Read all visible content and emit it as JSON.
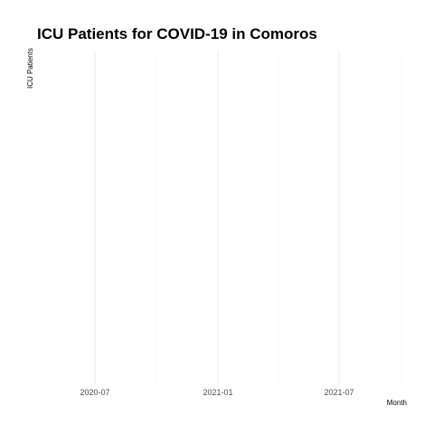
{
  "chart_data": {
    "type": "line",
    "title": "ICU Patients for COVID-19 in Comoros",
    "xlabel": "Month",
    "ylabel": "ICU Patients",
    "x_ticks": [
      "2020-07",
      "2021-01",
      "2021-07"
    ],
    "series": [],
    "grid": true,
    "legend": "none"
  }
}
